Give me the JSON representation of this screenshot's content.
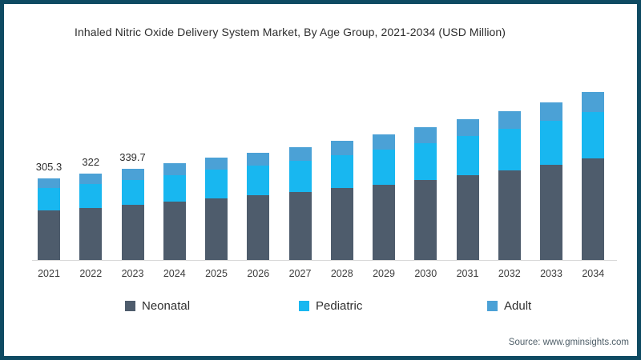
{
  "frame": {
    "border_color": "#0e4a62",
    "background": "#ffffff"
  },
  "header": {
    "title": "Inhaled Nitric Oxide Delivery System Market, By Age Group, 2021-2034 (USD Million)"
  },
  "chart_data": {
    "type": "bar",
    "stacked": true,
    "title": "Inhaled Nitric Oxide Delivery System Market, By Age Group, 2021-2034 (USD Million)",
    "xlabel": "",
    "ylabel": "USD Million",
    "ylim": [
      0,
      700
    ],
    "grid": false,
    "legend_position": "bottom",
    "categories": [
      "2021",
      "2022",
      "2023",
      "2024",
      "2025",
      "2026",
      "2027",
      "2028",
      "2029",
      "2030",
      "2031",
      "2032",
      "2033",
      "2034"
    ],
    "series": [
      {
        "name": "Neonatal",
        "color": "#4e5c6c",
        "values": [
          184.2,
          194.1,
          205.0,
          217.2,
          229.8,
          241.7,
          253.8,
          268.2,
          282.0,
          298.2,
          316.2,
          335.4,
          355.1,
          377.9
        ]
      },
      {
        "name": "Pediatric",
        "color": "#18b7f0",
        "values": [
          84.8,
          89.6,
          94.8,
          100.3,
          106.2,
          111.6,
          117.2,
          123.8,
          130.2,
          137.7,
          146.0,
          154.8,
          163.9,
          174.5
        ]
      },
      {
        "name": "Adult",
        "color": "#4ba1d6",
        "values": [
          36.3,
          38.3,
          39.9,
          42.8,
          45.2,
          47.6,
          49.9,
          52.8,
          55.5,
          58.7,
          62.3,
          66.0,
          70.0,
          74.4
        ]
      }
    ],
    "totals": [
      305.3,
      322.0,
      339.7,
      360.3,
      381.2,
      400.9,
      420.9,
      444.8,
      467.7,
      494.6,
      524.5,
      556.2,
      589.0,
      626.8
    ],
    "bar_labels": [
      "305.3",
      "322",
      "339.7",
      "",
      "",
      "",
      "",
      "",
      "",
      "",
      "",
      "",
      "",
      ""
    ]
  },
  "legend": {
    "items": [
      {
        "label": "Neonatal",
        "color": "#4e5c6c"
      },
      {
        "label": "Pediatric",
        "color": "#18b7f0"
      },
      {
        "label": "Adult",
        "color": "#4ba1d6"
      }
    ]
  },
  "footer": {
    "source": "Source: www.gminsights.com"
  }
}
